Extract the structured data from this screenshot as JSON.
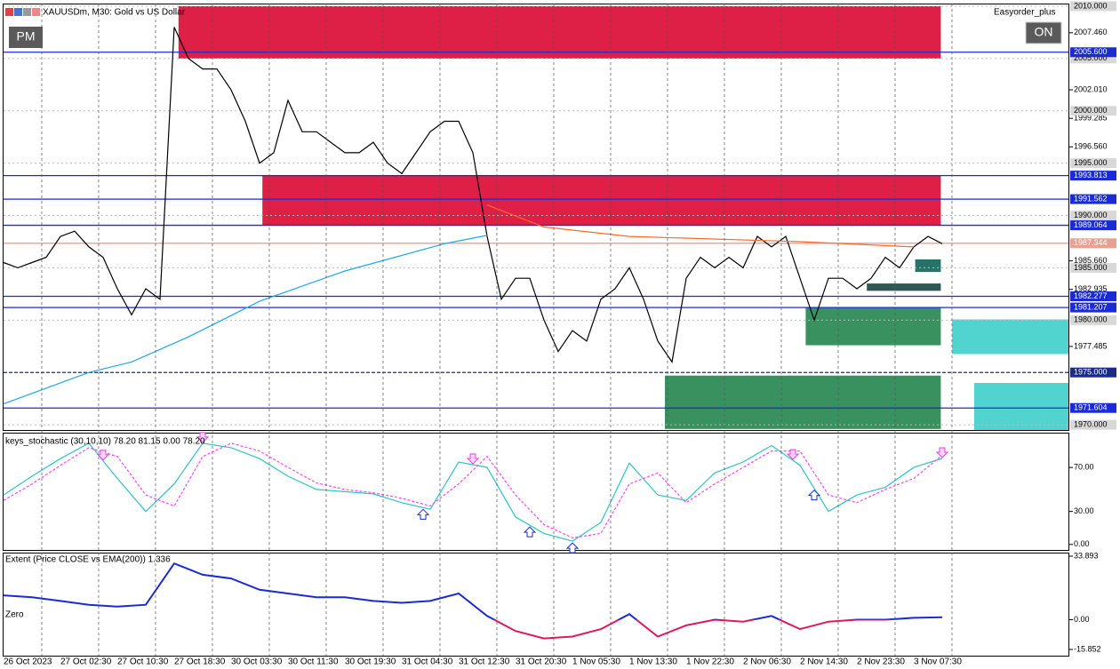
{
  "header": {
    "expert": "Easyorder_plus",
    "left_button": "PM",
    "right_button": "ON"
  },
  "chart_data": [
    {
      "type": "line",
      "title": "XAUUSDm, M30:  Gold vs US Dollar",
      "xlim": [
        0,
        66
      ],
      "ylim": [
        1969.5,
        2010.25
      ],
      "yticks": [
        {
          "value": 2007.46,
          "label": "2007.460"
        },
        {
          "value": 2002.01,
          "label": "2002.010"
        },
        {
          "value": 1999.285,
          "label": "1999.285"
        },
        {
          "value": 1996.56,
          "label": "1996.560"
        },
        {
          "value": 1985.66,
          "label": "1985.660"
        },
        {
          "value": 1982.935,
          "label": "1982.935"
        },
        {
          "value": 1977.485,
          "label": "1977.485"
        }
      ],
      "round_levels": [
        {
          "value": 2010,
          "label": "2010.000"
        },
        {
          "value": 2005,
          "label": "2005.000"
        },
        {
          "value": 2000,
          "label": "2000.000"
        },
        {
          "value": 1995,
          "label": "1995.000"
        },
        {
          "value": 1990,
          "label": "1990.000"
        },
        {
          "value": 1985,
          "label": "1985.000"
        },
        {
          "value": 1980,
          "label": "1980.000"
        },
        {
          "value": 1970,
          "label": "1970.000"
        }
      ],
      "levels": [
        {
          "value": 2005.6,
          "label": "2005.600",
          "color": "#1a2bd6"
        },
        {
          "value": 1993.813,
          "label": "1993.813",
          "color": "#1a2bd6"
        },
        {
          "value": 1991.562,
          "label": "1991.562",
          "color": "#1a2bd6"
        },
        {
          "value": 1989.064,
          "label": "1989.064",
          "color": "#1a2bd6"
        },
        {
          "value": 1987.344,
          "label": "1987.344",
          "color": "#e8a090"
        },
        {
          "value": 1982.277,
          "label": "1982.277",
          "color": "#1a2bd6"
        },
        {
          "value": 1981.207,
          "label": "1981.207",
          "color": "#1a2bd6"
        },
        {
          "value": 1975,
          "label": "1975.000",
          "color": "#1a2b8a",
          "dash": true
        },
        {
          "value": 1971.604,
          "label": "1971.604",
          "color": "#1a2bd6"
        }
      ],
      "zones": [
        {
          "x": [
            12.3,
            65.9
          ],
          "top": 2010,
          "bottom": 2005,
          "color": "#dc143c"
        },
        {
          "x": [
            18.2,
            65.9
          ],
          "top": 1993.813,
          "bottom": 1989.064,
          "color": "#dc143c"
        },
        {
          "x": [
            56.4,
            65.9
          ],
          "top": 1981.2,
          "bottom": 1977.6,
          "color": "#2e8b57"
        },
        {
          "x": [
            46.5,
            65.9
          ],
          "top": 1974.7,
          "bottom": 1969.6,
          "color": "#2e8b57"
        },
        {
          "x": [
            60.7,
            65.9
          ],
          "top": 1983.5,
          "bottom": 1982.8,
          "color": "#234f4a"
        },
        {
          "x": [
            64.1,
            65.9
          ],
          "top": 1985.8,
          "bottom": 1984.6,
          "color": "#1a6b62"
        },
        {
          "x": [
            66.7,
            74.9
          ],
          "top": 1980.07,
          "bottom": 1976.76,
          "color": "#48d1cc"
        },
        {
          "x": [
            68.25,
            74.9
          ],
          "top": 1974.0,
          "bottom": 1969.5,
          "color": "#48d1cc"
        }
      ],
      "series": [
        {
          "color": "#000000",
          "values": [
            1985.5,
            1985,
            1985.5,
            1986,
            1988,
            1988.5,
            1987,
            1986,
            1983,
            1980.5,
            1983,
            1982,
            2008,
            2005,
            2004,
            2004,
            2002,
            1999,
            1995,
            1996,
            2001,
            1998,
            1998,
            1997,
            1996,
            1996,
            1997,
            1995,
            1994,
            1996,
            1998,
            1999,
            1999,
            1996,
            1988,
            1982,
            1984,
            1984,
            1980,
            1977,
            1979,
            1978,
            1982,
            1983,
            1985,
            1982,
            1978,
            1976,
            1984,
            1986,
            1985,
            1986,
            1985,
            1988,
            1987,
            1988,
            1984,
            1980,
            1984,
            1984,
            1983,
            1984,
            1986,
            1985,
            1987,
            1988,
            1987.3
          ]
        },
        {
          "color": "#1ea7e8",
          "x": [
            0,
            6,
            9,
            13,
            18,
            24,
            31,
            34
          ],
          "values": [
            1972.0,
            1975,
            1976,
            1978.4,
            1981.8,
            1984.7,
            1987.3,
            1988.1
          ]
        },
        {
          "color": "#ff6a2a",
          "x": [
            34,
            38,
            44,
            56,
            64
          ],
          "values": [
            1991,
            1988.9,
            1988,
            1987.5,
            1987
          ]
        }
      ]
    },
    {
      "type": "line",
      "title": "keys_stochastic (30,10,10) 78.20 81.15 0.00 78.20",
      "xlim": [
        0,
        66
      ],
      "ylim": [
        -5,
        100
      ],
      "yticks": [
        {
          "value": 70,
          "label": "70.00"
        },
        {
          "value": 30,
          "label": "30.00"
        },
        {
          "value": 0,
          "label": "0.00"
        }
      ],
      "series": [
        {
          "color": "#2ec4c4",
          "x": [
            0,
            2,
            4,
            6,
            8,
            10,
            12,
            14,
            16,
            18,
            20,
            22,
            24,
            26,
            28,
            30,
            32,
            34,
            36,
            38,
            40,
            42,
            44,
            46,
            48,
            50,
            52,
            54,
            56,
            58,
            60,
            62,
            64,
            66
          ],
          "values": [
            45,
            62,
            78,
            92,
            60,
            30,
            55,
            92,
            88,
            78,
            62,
            50,
            48,
            46,
            38,
            32,
            75,
            70,
            25,
            10,
            3,
            20,
            74,
            45,
            40,
            65,
            75,
            90,
            72,
            30,
            45,
            52,
            70,
            78.2
          ]
        },
        {
          "color": "#ff44ff",
          "dash": true,
          "x": [
            0,
            2,
            4,
            6,
            8,
            10,
            12,
            14,
            16,
            18,
            20,
            22,
            24,
            26,
            28,
            30,
            32,
            34,
            36,
            38,
            40,
            42,
            44,
            46,
            48,
            50,
            52,
            54,
            56,
            58,
            60,
            62,
            64,
            66
          ],
          "values": [
            40,
            55,
            72,
            88,
            80,
            45,
            35,
            80,
            92,
            85,
            70,
            56,
            50,
            47,
            42,
            35,
            55,
            80,
            45,
            18,
            6,
            10,
            55,
            65,
            38,
            55,
            70,
            85,
            85,
            45,
            38,
            50,
            60,
            81.15
          ]
        }
      ],
      "signals_down": [
        7,
        14,
        33,
        55.5,
        66
      ],
      "signals_up": [
        29.5,
        37,
        40,
        57
      ]
    },
    {
      "type": "line",
      "title": "Extent (Price CLOSE vs EMA(200)) 1.336",
      "zero_label": "Zero",
      "xlim": [
        0,
        66
      ],
      "ylim": [
        -15.852,
        33.893
      ],
      "yticks": [
        {
          "value": 33.893,
          "label": "33.893"
        },
        {
          "value": 0,
          "label": "0.00"
        },
        {
          "value": -15.852,
          "label": "-15.852"
        }
      ],
      "xticks": [
        {
          "value": 0,
          "label": "26 Oct 2023"
        },
        {
          "value": 4,
          "label": "27 Oct 02:30"
        },
        {
          "value": 8,
          "label": "27 Oct 10:30"
        },
        {
          "value": 12,
          "label": "27 Oct 18:30"
        },
        {
          "value": 16,
          "label": "30 Oct 03:30"
        },
        {
          "value": 20,
          "label": "30 Oct 11:30"
        },
        {
          "value": 24,
          "label": "30 Oct 19:30"
        },
        {
          "value": 28,
          "label": "31 Oct 04:30"
        },
        {
          "value": 32,
          "label": "31 Oct 12:30"
        },
        {
          "value": 36,
          "label": "31 Oct 20:30"
        },
        {
          "value": 40,
          "label": "1 Nov 05:30"
        },
        {
          "value": 44,
          "label": "1 Nov 13:30"
        },
        {
          "value": 48,
          "label": "1 Nov 22:30"
        },
        {
          "value": 52,
          "label": "2 Nov 06:30"
        },
        {
          "value": 56,
          "label": "2 Nov 14:30"
        },
        {
          "value": 60,
          "label": "2 Nov 23:30"
        },
        {
          "value": 64,
          "label": "3 Nov 07:30"
        }
      ],
      "series": [
        {
          "color": "#1a2bd6",
          "neg_color": "#e0185e",
          "x": [
            0,
            2,
            4,
            6,
            8,
            10,
            12,
            14,
            16,
            18,
            20,
            22,
            24,
            26,
            28,
            30,
            32,
            34,
            36,
            38,
            40,
            42,
            44,
            46,
            48,
            50,
            52,
            54,
            56,
            58,
            60,
            62,
            64,
            66
          ],
          "values": [
            13,
            12,
            10,
            8,
            7,
            8,
            30,
            24,
            22,
            16,
            14,
            12,
            12,
            10,
            9,
            10,
            14,
            2,
            -6,
            -10,
            -9,
            -5,
            3,
            -9,
            -3,
            0,
            -1,
            2,
            -5,
            -1,
            0,
            0,
            1,
            1.336
          ]
        }
      ]
    }
  ]
}
